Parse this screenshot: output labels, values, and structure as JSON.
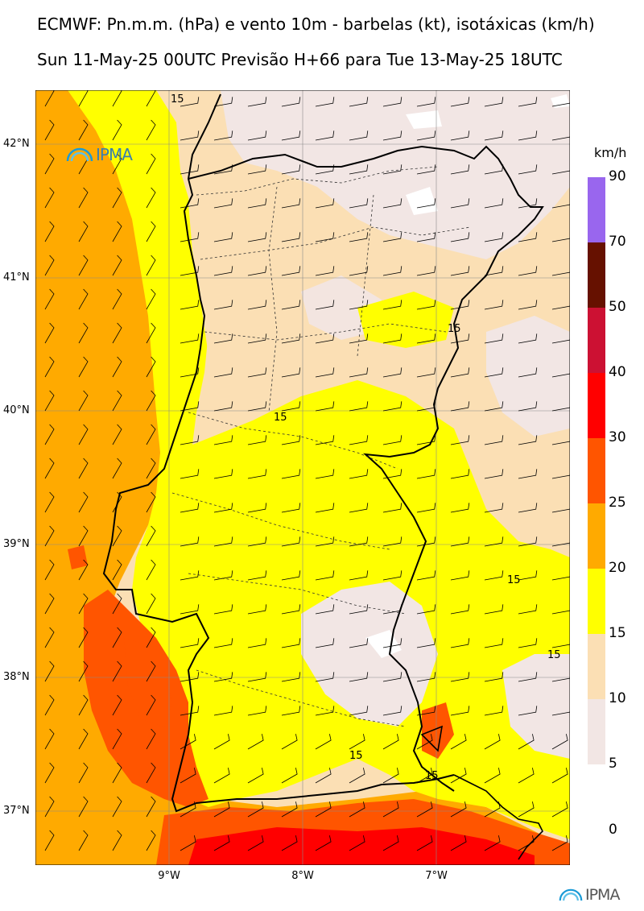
{
  "header": {
    "title": "ECMWF: Pn.m.m. (hPa) e vento 10m - barbelas (kt), isotáxicas (km/h)",
    "subtitle": "Sun 11-May-25 00UTC Previsão H+66 para Tue 13-May-25 18UTC"
  },
  "logo": {
    "text": "IPMA"
  },
  "map": {
    "lat_labels": [
      "42°N",
      "41°N",
      "40°N",
      "39°N",
      "38°N",
      "37°N"
    ],
    "lon_labels": [
      "9°W",
      "8°W",
      "7°W"
    ],
    "contour_label": "15",
    "colors": {
      "c5_10": "#f2e6e4",
      "c10_15": "#fbdfb4",
      "c15_20": "#ffff00",
      "c20_25": "#ffaa00",
      "c25_30": "#ff5500",
      "c30_40": "#ff0000"
    }
  },
  "legend": {
    "unit": "km/h",
    "levels": [
      "90",
      "70",
      "50",
      "40",
      "30",
      "25",
      "20",
      "15",
      "10",
      "5",
      "0"
    ],
    "colors": [
      "#9966ee",
      "#661100",
      "#cc1133",
      "#ff0000",
      "#ff5500",
      "#ffaa00",
      "#ffff00",
      "#fbdfb4",
      "#f2e6e4"
    ]
  }
}
